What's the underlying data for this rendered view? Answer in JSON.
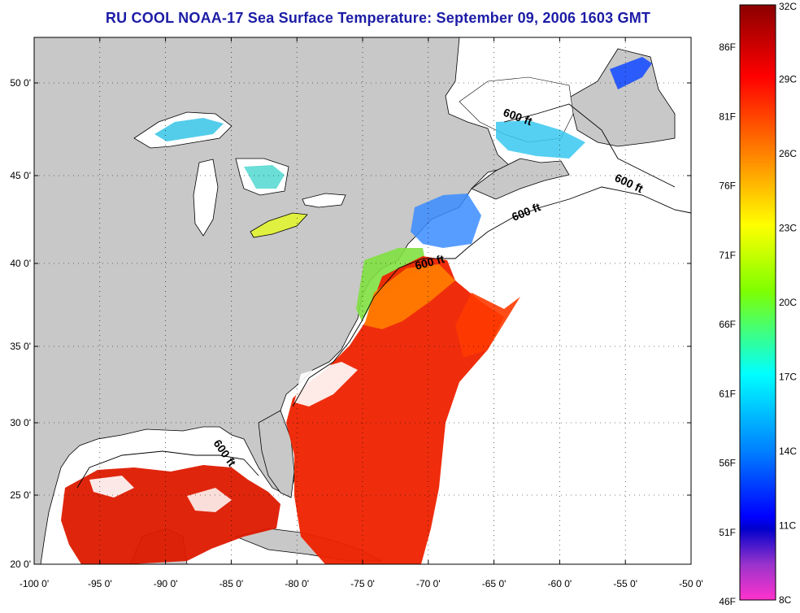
{
  "title": "RU COOL  NOAA-17  Sea Surface Temperature:  September 09, 2006 1603 GMT",
  "lat_labels": [
    "50 0'",
    "45 0'",
    "40 0'",
    "35 0'",
    "30 0'",
    "25 0'",
    "20 0'"
  ],
  "lon_labels": [
    "-100 0'",
    "-95 0'",
    "-90 0'",
    "-85 0'",
    "-80 0'",
    "-75 0'",
    "-70 0'",
    "-65 0'",
    "-60 0'",
    "-55 0'",
    "-50 0'"
  ],
  "depth_contour_label": "600 ft",
  "colorbar": {
    "celsius_labels": [
      "32C",
      "29C",
      "26C",
      "23C",
      "20C",
      "17C",
      "14C",
      "11C",
      "8C"
    ],
    "fahrenheit_labels": [
      "86F",
      "81F",
      "76F",
      "71F",
      "66F",
      "61F",
      "56F",
      "51F",
      "46F"
    ],
    "colors_top_to_bottom": [
      "#8b0000",
      "#ff0000",
      "#ff8c00",
      "#ffff00",
      "#7fff00",
      "#00ffff",
      "#0080ff",
      "#0000ff",
      "#ff33cc"
    ]
  },
  "colors": {
    "land": "#c8c8c8",
    "cloud": "#ffffff",
    "coast": "#000000",
    "title": "#1c1ca6"
  }
}
